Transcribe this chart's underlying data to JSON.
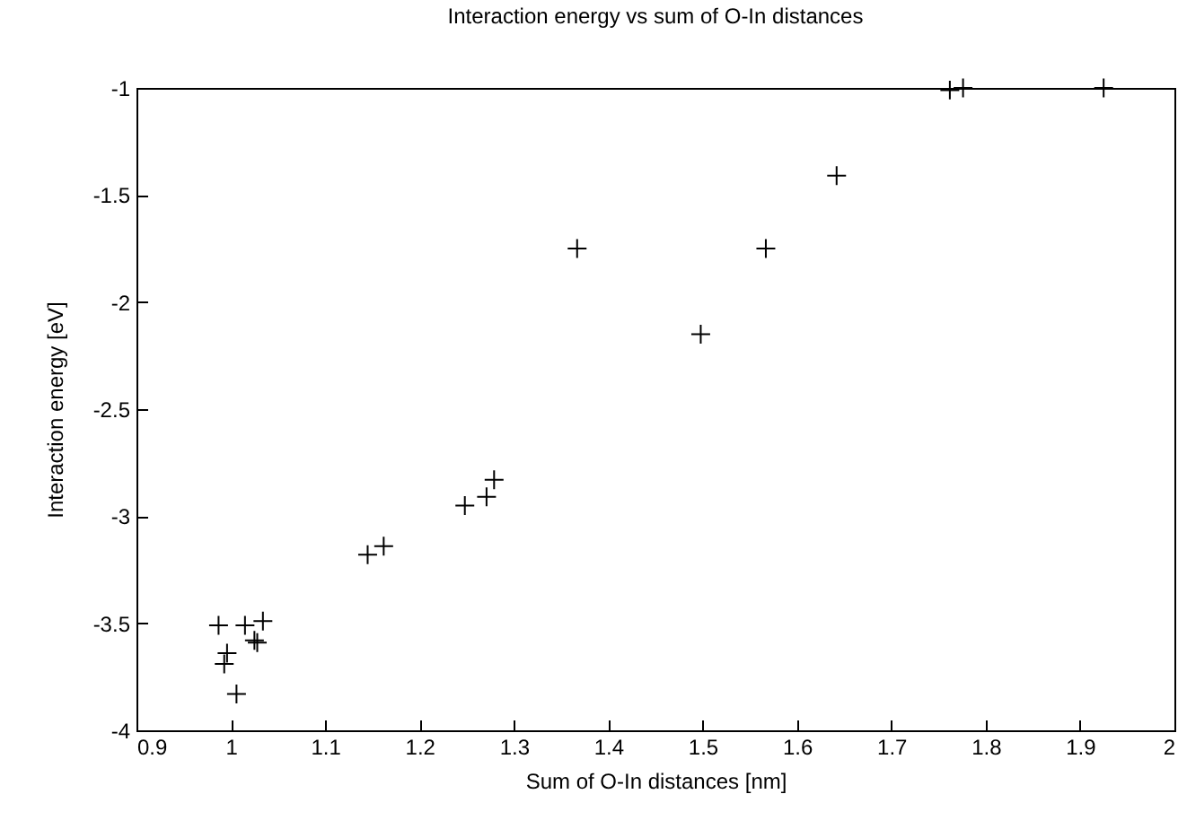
{
  "chart_data": {
    "type": "scatter",
    "title": "Interaction energy vs sum of O-In distances",
    "xlabel": "Sum of O-In distances [nm]",
    "ylabel": "Interaction energy [eV]",
    "x": [
      0.987,
      1.015,
      1.034,
      1.025,
      1.028,
      0.996,
      0.993,
      1.006,
      1.145,
      1.162,
      1.248,
      1.271,
      1.279,
      1.367,
      1.498,
      1.567,
      1.642,
      1.762,
      1.776,
      1.925
    ],
    "series": [
      {
        "color": "#000000",
        "values": [
          -3.51,
          -3.51,
          -3.49,
          -3.58,
          -3.59,
          -3.64,
          -3.69,
          -3.83,
          -3.18,
          -3.14,
          -2.95,
          -2.91,
          -2.83,
          -1.75,
          -2.15,
          -1.75,
          -1.41,
          -1.01,
          -1.0,
          -1.0
        ]
      }
    ],
    "xlim": [
      0.9,
      2
    ],
    "ylim": [
      -4,
      -1
    ],
    "xticks": [
      0.9,
      1,
      1.1,
      1.2,
      1.3,
      1.4,
      1.5,
      1.6,
      1.7,
      1.8,
      1.9,
      2
    ],
    "yticks": [
      -4,
      -3.5,
      -3,
      -2.5,
      -2,
      -1.5,
      -1
    ],
    "marker": "cross",
    "grid": false
  }
}
